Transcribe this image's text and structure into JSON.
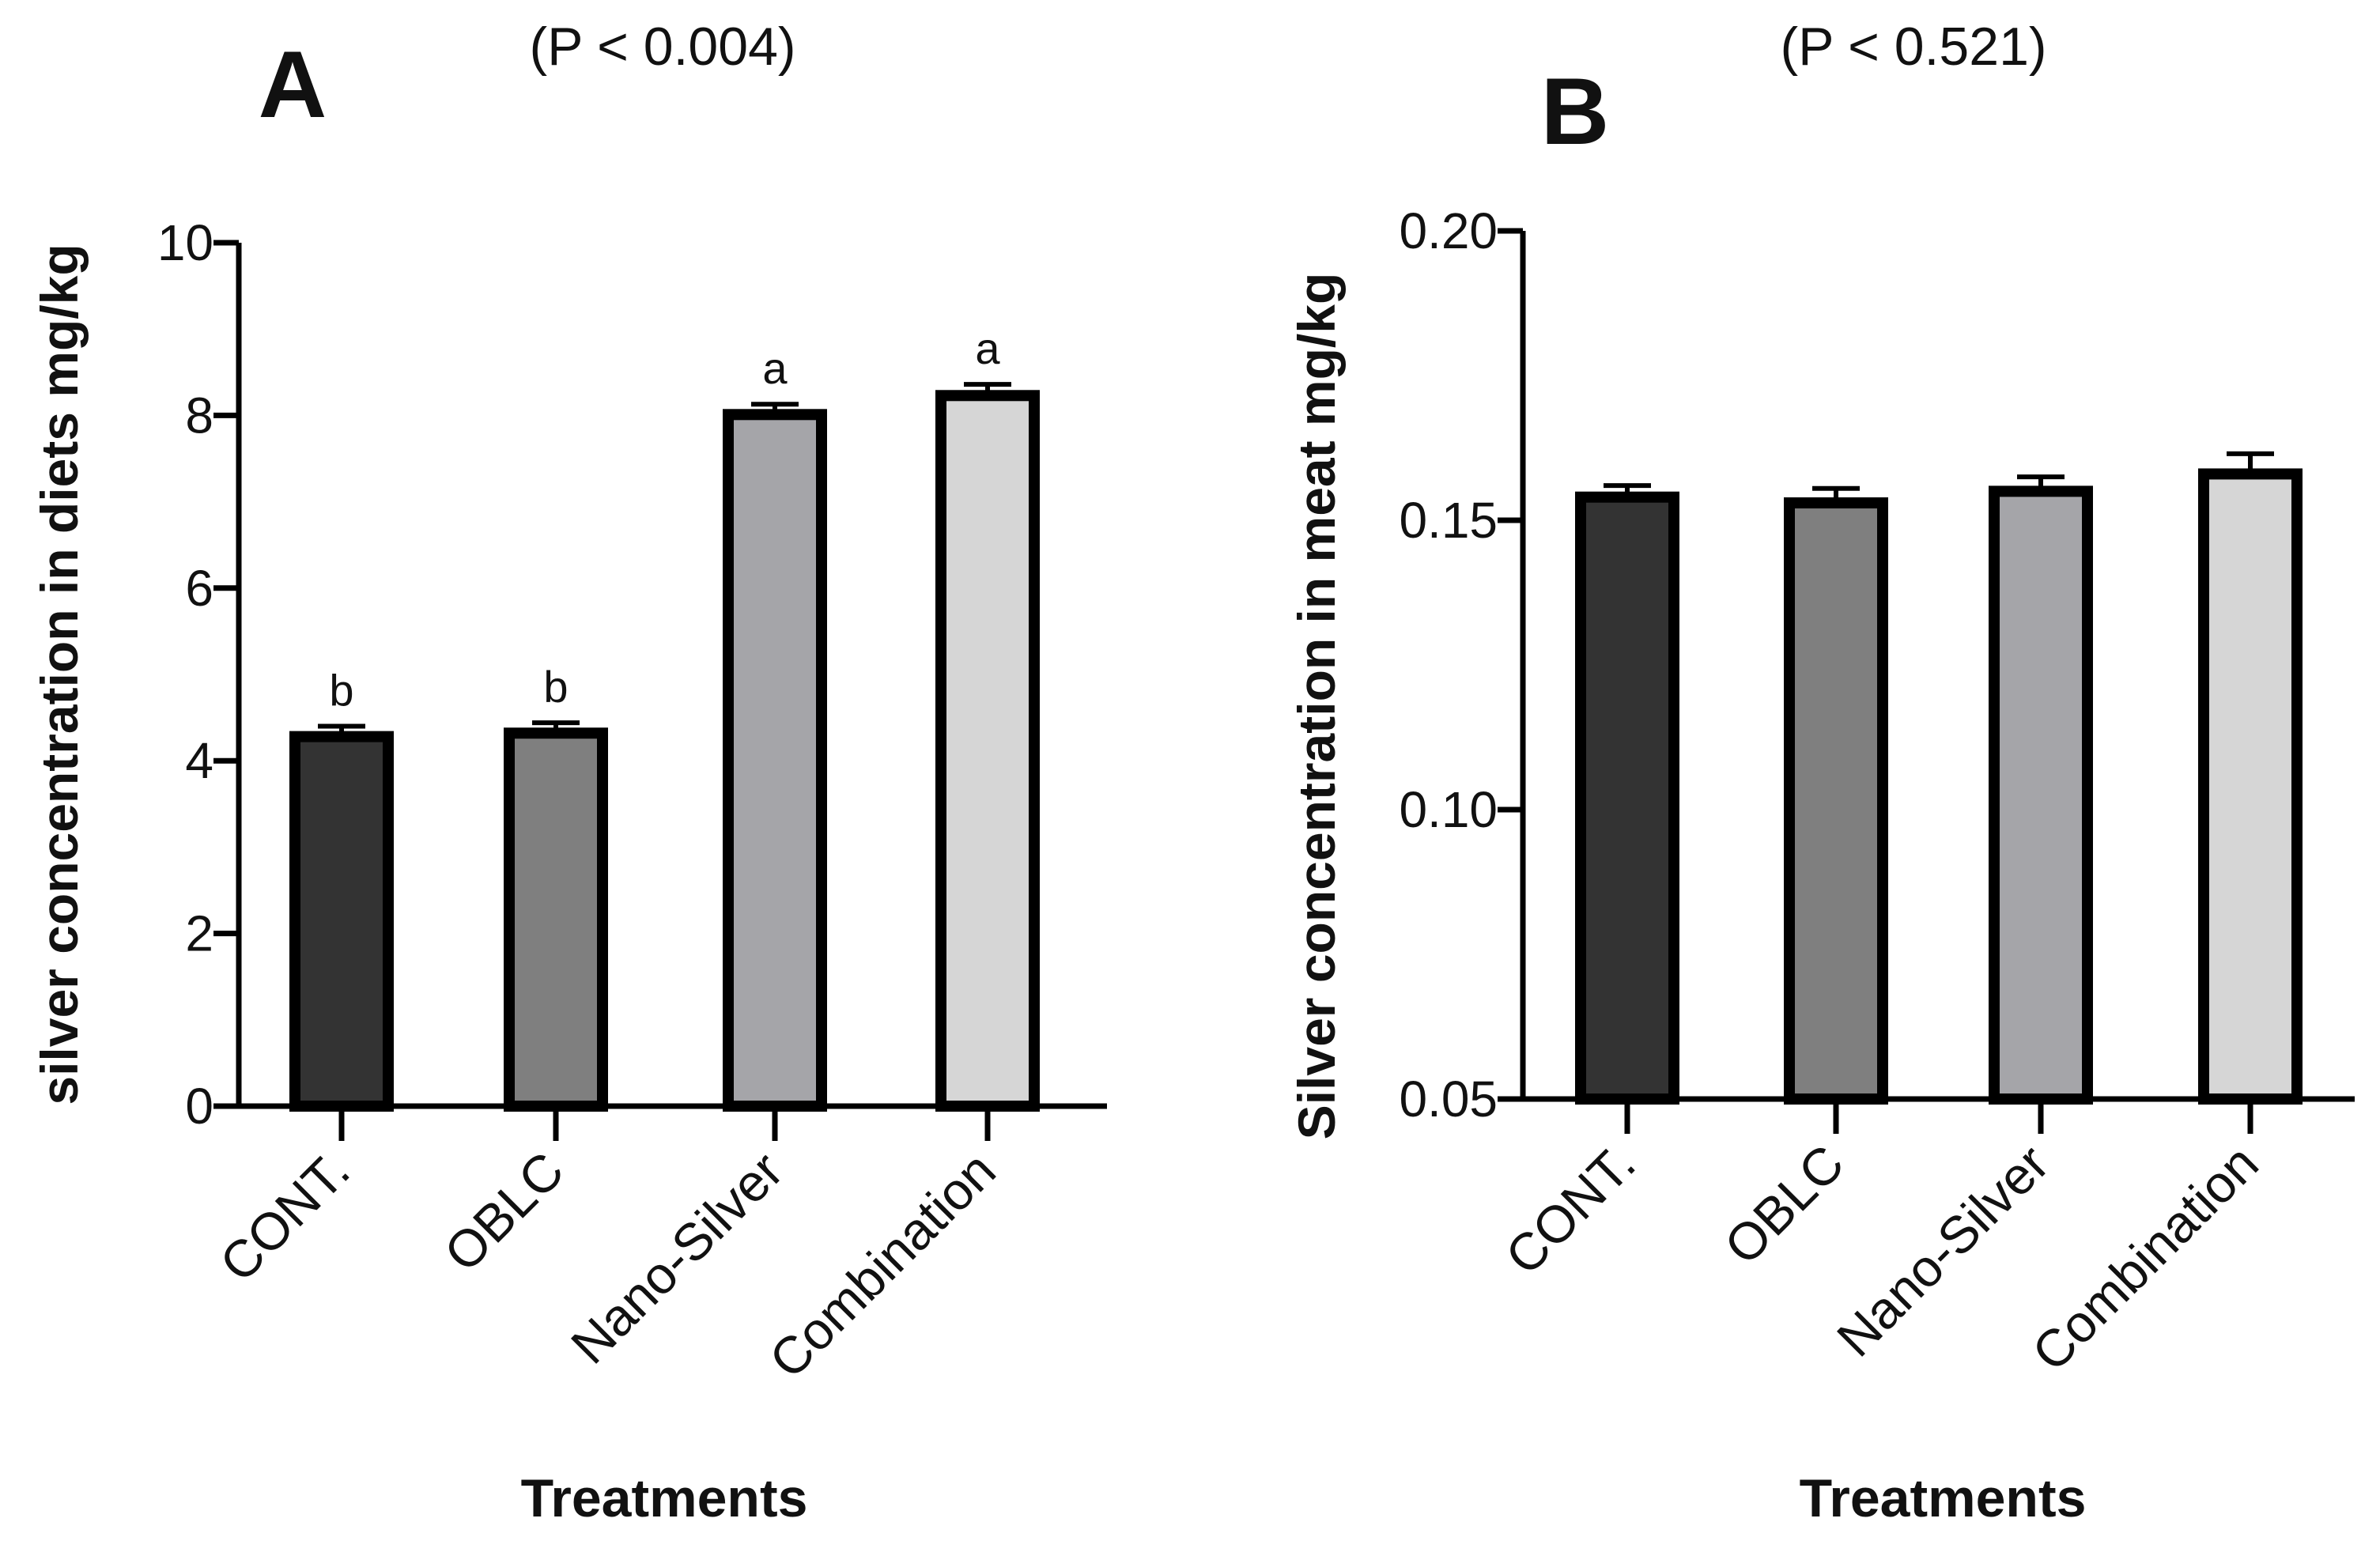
{
  "chart_data": [
    {
      "type": "bar",
      "panel_label": "A",
      "title": "(P < 0.004)",
      "xlabel": "Treatments",
      "ylabel": "silver concentration in diets mg/kg",
      "categories": [
        "CONT.",
        "OBLC",
        "Nano-Silver",
        "Combination"
      ],
      "values": [
        4.28,
        4.32,
        8.01,
        8.23
      ],
      "errors": [
        0.12,
        0.12,
        0.12,
        0.13
      ],
      "significance_letters": [
        "b",
        "b",
        "a",
        "a"
      ],
      "colors": [
        "#333333",
        "#7f7f7f",
        "#a5a5a9",
        "#d6d6d6"
      ],
      "ylim": [
        0,
        10
      ],
      "yticks": [
        0,
        2,
        4,
        6,
        8,
        10
      ],
      "ytick_labels": [
        "0",
        "2",
        "4",
        "6",
        "8",
        "10"
      ],
      "grid": false
    },
    {
      "type": "bar",
      "panel_label": "B",
      "title": "(P < 0.521)",
      "xlabel": "Treatments",
      "ylabel": "Silver concentration in meat mg/kg",
      "categories": [
        "CONT.",
        "OBLC",
        "Nano-Silver",
        "Combination"
      ],
      "values": [
        0.154,
        0.153,
        0.155,
        0.158
      ],
      "errors": [
        0.002,
        0.0025,
        0.0025,
        0.0035
      ],
      "significance_letters": [],
      "colors": [
        "#333333",
        "#7f7f7f",
        "#a5a5a9",
        "#d6d6d6"
      ],
      "ylim": [
        0.05,
        0.2
      ],
      "yticks": [
        0.05,
        0.1,
        0.15,
        0.2
      ],
      "ytick_labels": [
        "0.05",
        "0.10",
        "0.15",
        "0.20"
      ],
      "grid": false
    }
  ]
}
